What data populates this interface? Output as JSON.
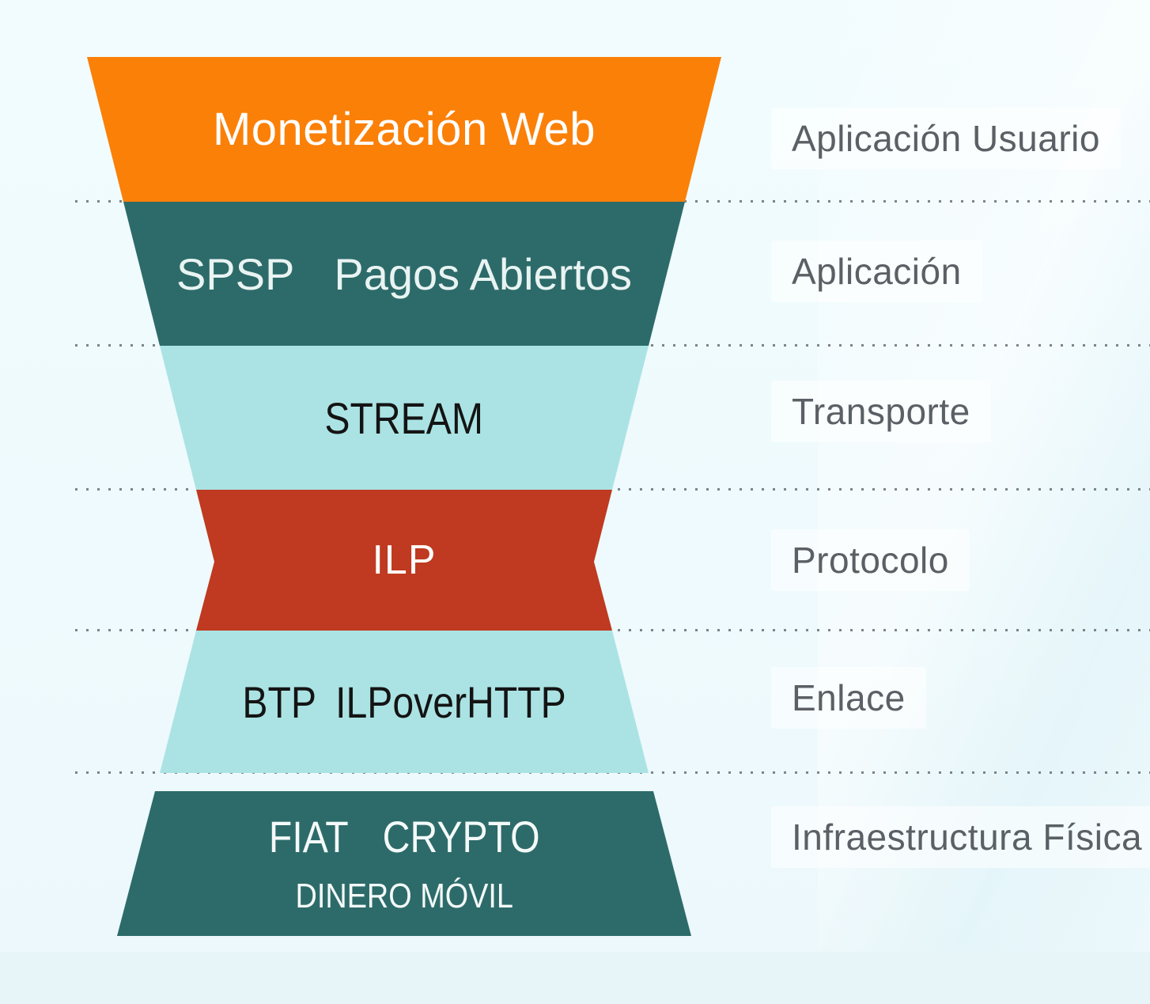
{
  "diagram": {
    "type": "protocol-stack-hourglass",
    "separator_style": "dotted",
    "separator_color": "#7b8589",
    "category_text_color": "#5a6065",
    "background_color": "#eefafd",
    "layers": [
      {
        "name": "Monetización Web",
        "category": "Aplicación Usuario",
        "fill": "#fb8008",
        "text_color": "#ffffff"
      },
      {
        "parts": [
          "SPSP",
          "Pagos Abiertos"
        ],
        "category": "Aplicación",
        "fill": "#2d6b6a",
        "text_color": "#e9f4f2"
      },
      {
        "name": "STREAM",
        "category": "Transporte",
        "fill": "#abe3e4",
        "text_color": "#141414"
      },
      {
        "name": "ILP",
        "category": "Protocolo",
        "fill": "#bf3a20",
        "text_color": "#ffffff"
      },
      {
        "parts": [
          "BTP",
          "ILPoverHTTP"
        ],
        "category": "Enlace",
        "fill": "#abe3e4",
        "text_color": "#141414"
      },
      {
        "parts": [
          "FIAT",
          "CRYPTO"
        ],
        "sub_label": "DINERO MÓVIL",
        "category": "Infraestructura Física",
        "fill": "#2d6b6a",
        "text_color": "#f4faf9"
      }
    ]
  }
}
